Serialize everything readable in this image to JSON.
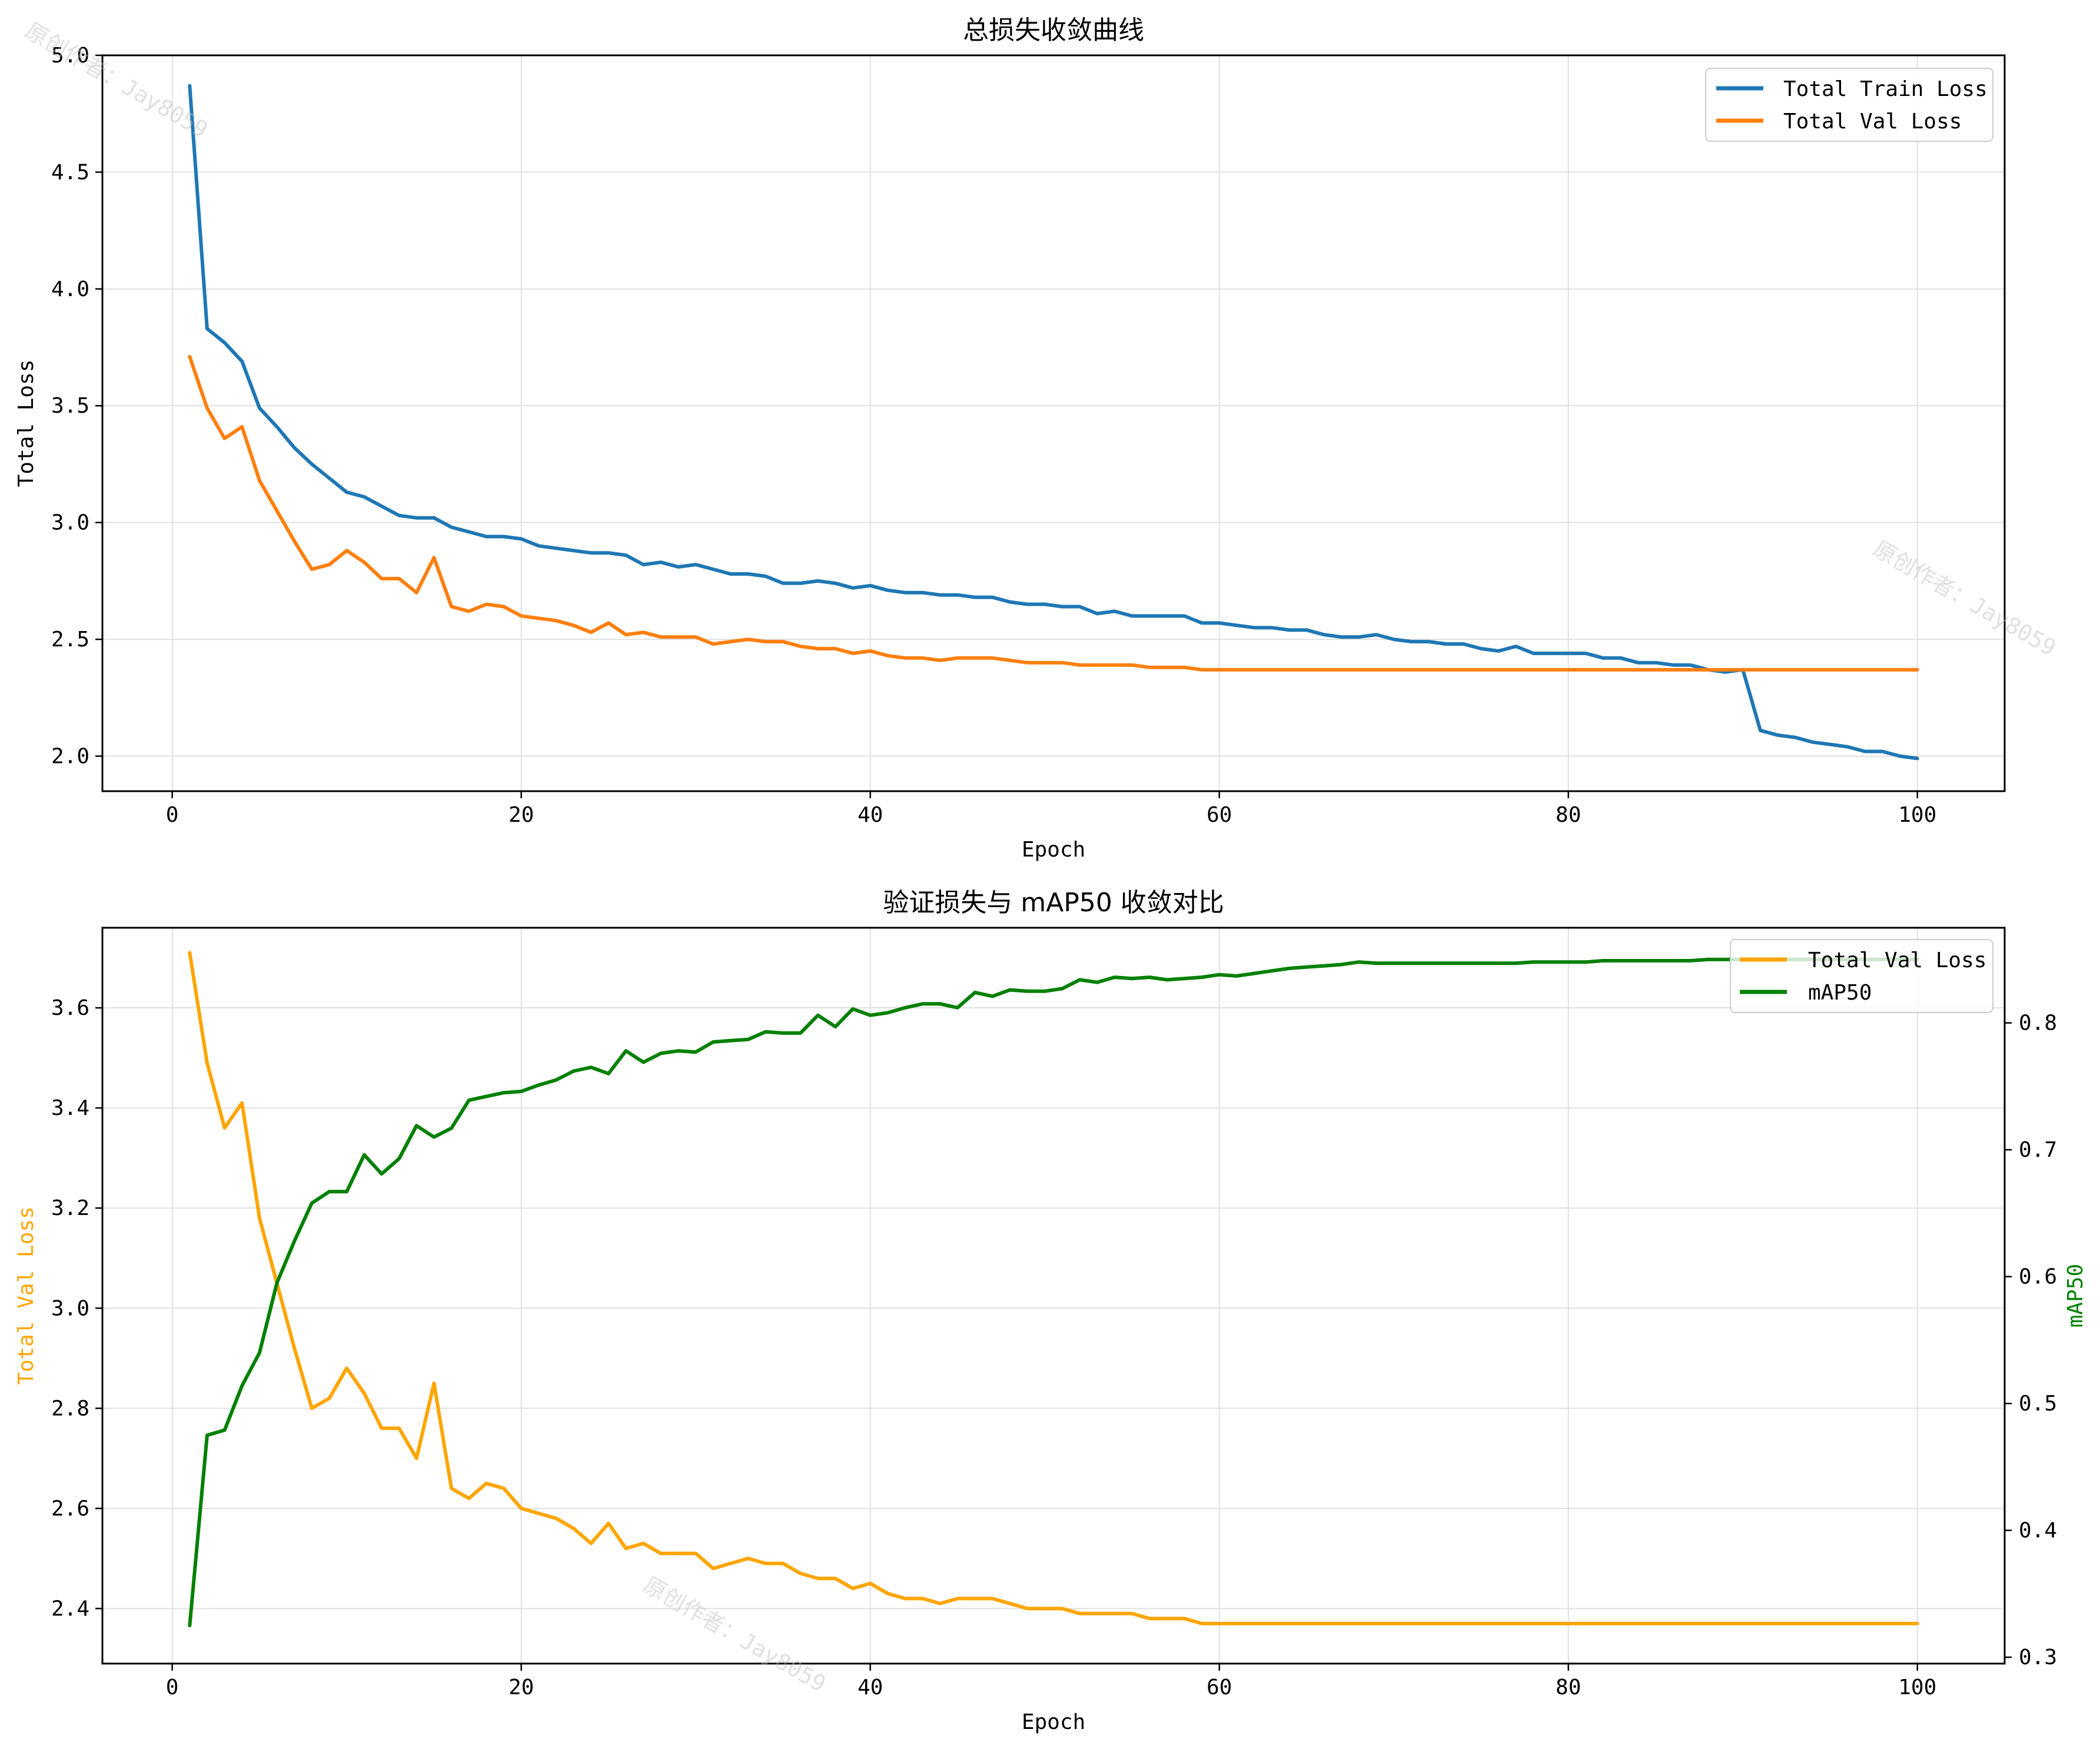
{
  "figure": {
    "watermark_text": "原创作者：Jay8059"
  },
  "chart_data": [
    {
      "type": "line",
      "title": "总损失收敛曲线",
      "xlabel": "Epoch",
      "ylabel": "Total Loss",
      "xlim": [
        -4,
        105
      ],
      "ylim": [
        1.85,
        5.0
      ],
      "xticks": [
        0,
        20,
        40,
        60,
        80,
        100
      ],
      "yticks": [
        2.0,
        2.5,
        3.0,
        3.5,
        4.0,
        4.5,
        5.0
      ],
      "grid": true,
      "legend_position": "top-right",
      "x": [
        1,
        2,
        3,
        4,
        5,
        6,
        7,
        8,
        9,
        10,
        11,
        12,
        13,
        14,
        15,
        16,
        17,
        18,
        19,
        20,
        21,
        22,
        23,
        24,
        25,
        26,
        27,
        28,
        29,
        30,
        31,
        32,
        33,
        34,
        35,
        36,
        37,
        38,
        39,
        40,
        41,
        42,
        43,
        44,
        45,
        46,
        47,
        48,
        49,
        50,
        51,
        52,
        53,
        54,
        55,
        56,
        57,
        58,
        59,
        60,
        61,
        62,
        63,
        64,
        65,
        66,
        67,
        68,
        69,
        70,
        71,
        72,
        73,
        74,
        75,
        76,
        77,
        78,
        79,
        80,
        81,
        82,
        83,
        84,
        85,
        86,
        87,
        88,
        89,
        90,
        91,
        92,
        93,
        94,
        95,
        96,
        97,
        98,
        99,
        100
      ],
      "series": [
        {
          "name": "Total Train Loss",
          "color": "#1f77b4",
          "values": [
            4.87,
            3.83,
            3.77,
            3.69,
            3.49,
            3.41,
            3.32,
            3.25,
            3.19,
            3.13,
            3.11,
            3.07,
            3.03,
            3.02,
            3.02,
            2.98,
            2.96,
            2.94,
            2.94,
            2.93,
            2.9,
            2.89,
            2.88,
            2.87,
            2.87,
            2.86,
            2.82,
            2.83,
            2.81,
            2.82,
            2.8,
            2.78,
            2.78,
            2.77,
            2.74,
            2.74,
            2.75,
            2.74,
            2.72,
            2.73,
            2.71,
            2.7,
            2.7,
            2.69,
            2.69,
            2.68,
            2.68,
            2.66,
            2.65,
            2.65,
            2.64,
            2.64,
            2.61,
            2.62,
            2.6,
            2.6,
            2.6,
            2.6,
            2.57,
            2.57,
            2.56,
            2.55,
            2.55,
            2.54,
            2.54,
            2.52,
            2.51,
            2.51,
            2.52,
            2.5,
            2.49,
            2.49,
            2.48,
            2.48,
            2.46,
            2.45,
            2.47,
            2.44,
            2.44,
            2.44,
            2.44,
            2.42,
            2.42,
            2.4,
            2.4,
            2.39,
            2.39,
            2.37,
            2.36,
            2.37,
            2.11,
            2.09,
            2.08,
            2.06,
            2.05,
            2.04,
            2.02,
            2.02,
            2.0,
            1.99
          ]
        },
        {
          "name": "Total Val Loss",
          "color": "#ff7f0e",
          "values": [
            3.71,
            3.49,
            3.36,
            3.41,
            3.18,
            3.05,
            2.92,
            2.8,
            2.82,
            2.88,
            2.83,
            2.76,
            2.76,
            2.7,
            2.85,
            2.64,
            2.62,
            2.65,
            2.64,
            2.6,
            2.59,
            2.58,
            2.56,
            2.53,
            2.57,
            2.52,
            2.53,
            2.51,
            2.51,
            2.51,
            2.48,
            2.49,
            2.5,
            2.49,
            2.49,
            2.47,
            2.46,
            2.46,
            2.44,
            2.45,
            2.43,
            2.42,
            2.42,
            2.41,
            2.42,
            2.42,
            2.42,
            2.41,
            2.4,
            2.4,
            2.4,
            2.39,
            2.39,
            2.39,
            2.39,
            2.38,
            2.38,
            2.38,
            2.37,
            2.37,
            2.37,
            2.37,
            2.37,
            2.37,
            2.37,
            2.37,
            2.37,
            2.37,
            2.37,
            2.37,
            2.37,
            2.37,
            2.37,
            2.37,
            2.37,
            2.37,
            2.37,
            2.37,
            2.37,
            2.37,
            2.37,
            2.37,
            2.37,
            2.37,
            2.37,
            2.37,
            2.37,
            2.37,
            2.37,
            2.37,
            2.37,
            2.37,
            2.37,
            2.37,
            2.37,
            2.37,
            2.37,
            2.37,
            2.37,
            2.37
          ]
        }
      ]
    },
    {
      "type": "line",
      "title": "验证损失与 mAP50 收敛对比",
      "xlabel": "Epoch",
      "ylabel_left": "Total Val Loss",
      "ylabel_left_color": "#ffa500",
      "ylabel_right": "mAP50",
      "ylabel_right_color": "#008000",
      "xlim": [
        -4,
        105
      ],
      "ylim_left": [
        2.29,
        3.76
      ],
      "ylim_right": [
        0.295,
        0.875
      ],
      "xticks": [
        0,
        20,
        40,
        60,
        80,
        100
      ],
      "yticks_left": [
        2.4,
        2.6,
        2.8,
        3.0,
        3.2,
        3.4,
        3.6
      ],
      "yticks_right": [
        0.3,
        0.4,
        0.5,
        0.6,
        0.7,
        0.8
      ],
      "grid": true,
      "legend_position": "top-right",
      "x": [
        1,
        2,
        3,
        4,
        5,
        6,
        7,
        8,
        9,
        10,
        11,
        12,
        13,
        14,
        15,
        16,
        17,
        18,
        19,
        20,
        21,
        22,
        23,
        24,
        25,
        26,
        27,
        28,
        29,
        30,
        31,
        32,
        33,
        34,
        35,
        36,
        37,
        38,
        39,
        40,
        41,
        42,
        43,
        44,
        45,
        46,
        47,
        48,
        49,
        50,
        51,
        52,
        53,
        54,
        55,
        56,
        57,
        58,
        59,
        60,
        61,
        62,
        63,
        64,
        65,
        66,
        67,
        68,
        69,
        70,
        71,
        72,
        73,
        74,
        75,
        76,
        77,
        78,
        79,
        80,
        81,
        82,
        83,
        84,
        85,
        86,
        87,
        88,
        89,
        90,
        91,
        92,
        93,
        94,
        95,
        96,
        97,
        98,
        99,
        100
      ],
      "series": [
        {
          "name": "Total Val Loss",
          "axis": "left",
          "color": "#ffa500",
          "values": [
            3.71,
            3.49,
            3.36,
            3.41,
            3.18,
            3.05,
            2.92,
            2.8,
            2.82,
            2.88,
            2.83,
            2.76,
            2.76,
            2.7,
            2.85,
            2.64,
            2.62,
            2.65,
            2.64,
            2.6,
            2.59,
            2.58,
            2.56,
            2.53,
            2.57,
            2.52,
            2.53,
            2.51,
            2.51,
            2.51,
            2.48,
            2.49,
            2.5,
            2.49,
            2.49,
            2.47,
            2.46,
            2.46,
            2.44,
            2.45,
            2.43,
            2.42,
            2.42,
            2.41,
            2.42,
            2.42,
            2.42,
            2.41,
            2.4,
            2.4,
            2.4,
            2.39,
            2.39,
            2.39,
            2.39,
            2.38,
            2.38,
            2.38,
            2.37,
            2.37,
            2.37,
            2.37,
            2.37,
            2.37,
            2.37,
            2.37,
            2.37,
            2.37,
            2.37,
            2.37,
            2.37,
            2.37,
            2.37,
            2.37,
            2.37,
            2.37,
            2.37,
            2.37,
            2.37,
            2.37,
            2.37,
            2.37,
            2.37,
            2.37,
            2.37,
            2.37,
            2.37,
            2.37,
            2.37,
            2.37,
            2.37,
            2.37,
            2.37,
            2.37,
            2.37,
            2.37,
            2.37,
            2.37,
            2.37,
            2.37
          ]
        },
        {
          "name": "mAP50",
          "axis": "right",
          "color": "#008000",
          "values": [
            0.325,
            0.475,
            0.479,
            0.514,
            0.54,
            0.595,
            0.628,
            0.658,
            0.667,
            0.667,
            0.696,
            0.681,
            0.693,
            0.719,
            0.71,
            0.717,
            0.739,
            0.742,
            0.745,
            0.746,
            0.751,
            0.755,
            0.762,
            0.765,
            0.76,
            0.778,
            0.769,
            0.776,
            0.778,
            0.777,
            0.785,
            0.786,
            0.787,
            0.793,
            0.792,
            0.792,
            0.806,
            0.797,
            0.811,
            0.806,
            0.808,
            0.812,
            0.815,
            0.815,
            0.812,
            0.824,
            0.821,
            0.826,
            0.825,
            0.825,
            0.827,
            0.834,
            0.832,
            0.836,
            0.835,
            0.836,
            0.834,
            0.835,
            0.836,
            0.838,
            0.837,
            0.839,
            0.841,
            0.843,
            0.844,
            0.845,
            0.846,
            0.848,
            0.847,
            0.847,
            0.847,
            0.847,
            0.847,
            0.847,
            0.847,
            0.847,
            0.847,
            0.848,
            0.848,
            0.848,
            0.848,
            0.849,
            0.849,
            0.849,
            0.849,
            0.849,
            0.849,
            0.85,
            0.85,
            0.85,
            0.85,
            0.85,
            0.85,
            0.85,
            0.85,
            0.85,
            0.85,
            0.85,
            0.85,
            0.85
          ]
        }
      ]
    }
  ]
}
